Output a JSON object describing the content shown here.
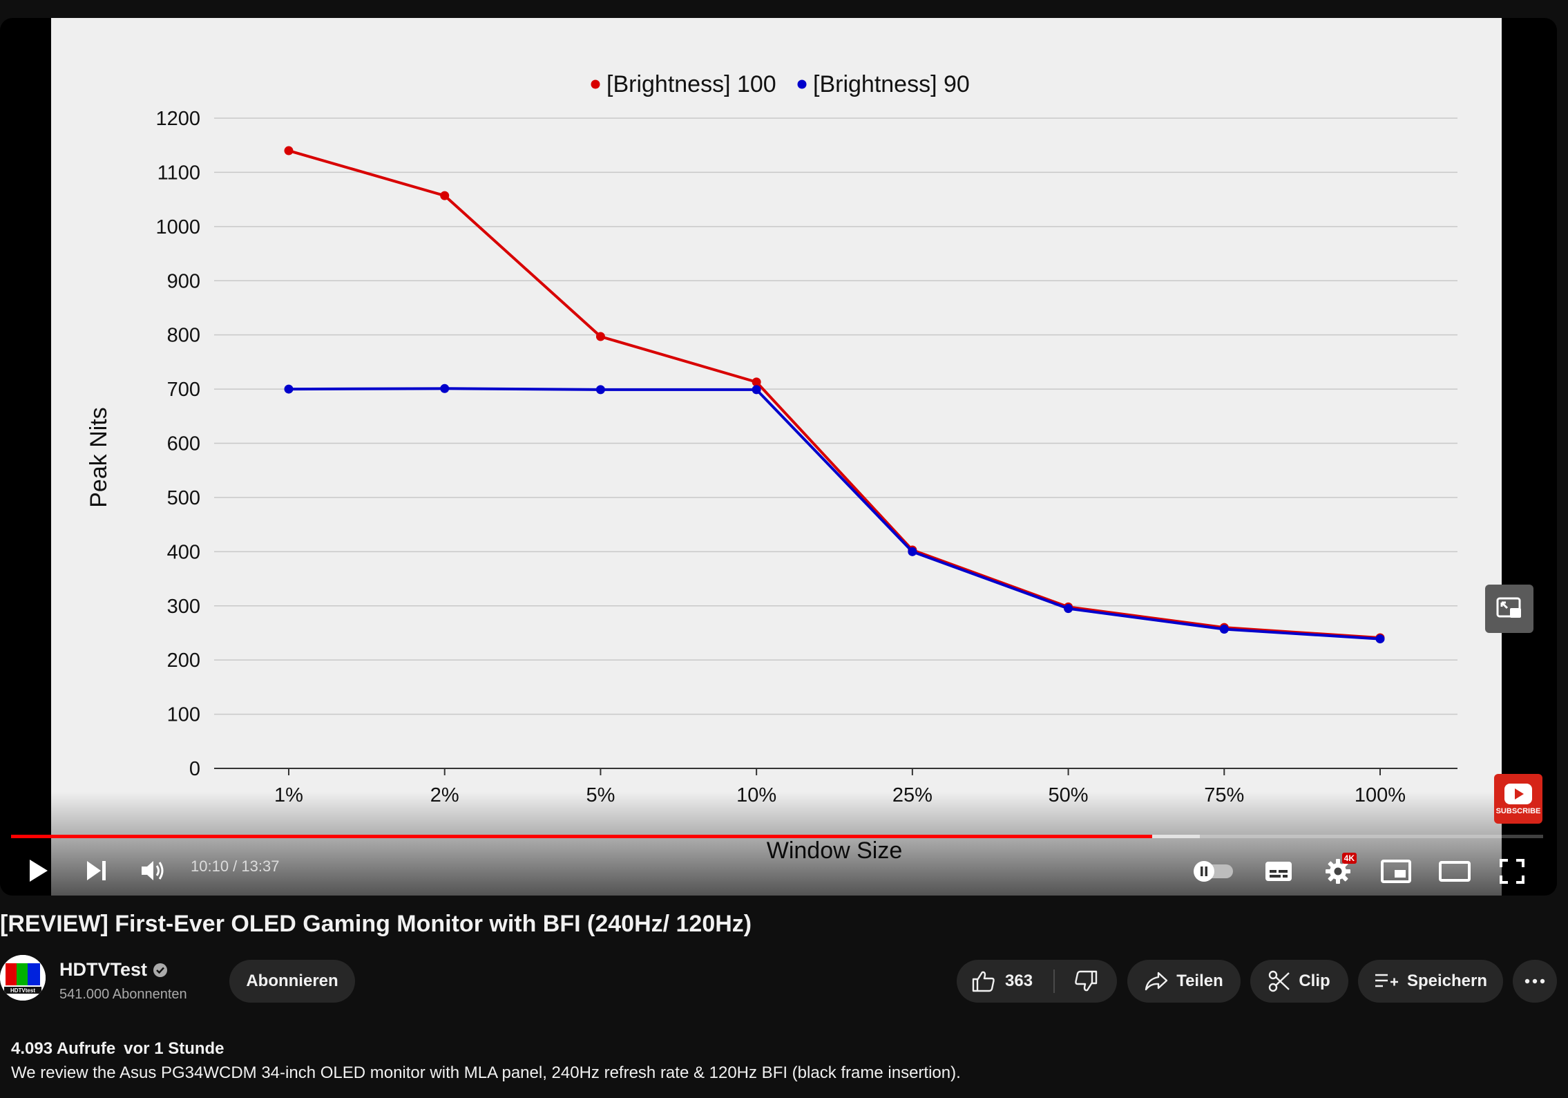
{
  "player": {
    "current_time": "10:10",
    "duration": "13:37",
    "time_display": "10:10 / 13:37",
    "progress_fraction": 0.745,
    "buffer_fraction": 0.776,
    "quality_badge": "4K",
    "subscribe_watermark": "SUBSCRIBE",
    "icons": {
      "play": "play-icon",
      "next": "next-icon",
      "volume": "volume-icon",
      "autoplay": "autoplay-toggle-icon",
      "subtitles": "subtitles-icon",
      "settings": "settings-gear-icon",
      "miniplayer": "miniplayer-icon",
      "theater": "theater-mode-icon",
      "fullscreen": "fullscreen-icon"
    }
  },
  "chart_data": {
    "type": "line",
    "title": "",
    "xlabel": "Window Size",
    "ylabel": "Peak Nits",
    "categories": [
      "1%",
      "2%",
      "5%",
      "10%",
      "25%",
      "50%",
      "75%",
      "100%"
    ],
    "ylim": [
      0,
      1200
    ],
    "yticks": [
      0,
      100,
      200,
      300,
      400,
      500,
      600,
      700,
      800,
      900,
      1000,
      1100,
      1200
    ],
    "grid": true,
    "legend_position": "top",
    "series": [
      {
        "name": "[Brightness] 100",
        "color": "#d80000",
        "values": [
          1140,
          1057,
          797,
          713,
          403,
          298,
          260,
          241
        ]
      },
      {
        "name": "[Brightness] 90",
        "color": "#0000cc",
        "values": [
          700,
          701,
          699,
          699,
          400,
          295,
          257,
          239
        ]
      }
    ]
  },
  "video": {
    "title": "[REVIEW] First-Ever OLED Gaming Monitor with BFI (240Hz/ 120Hz)",
    "channel_name": "HDTVTest",
    "subscriber_count": "541.000 Abonnenten",
    "avatar_text": "HDTVtest"
  },
  "actions": {
    "subscribe_label": "Abonnieren",
    "like_count": "363",
    "share_label": "Teilen",
    "clip_label": "Clip",
    "save_label": "Speichern"
  },
  "description": {
    "views": "4.093 Aufrufe",
    "age": "vor 1 Stunde",
    "text": "We review the Asus PG34WCDM 34-inch OLED monitor with MLA panel, 240Hz refresh rate & 120Hz BFI (black frame insertion)."
  },
  "colors": {
    "background": "#0f0f0f",
    "pill": "#272727",
    "progress_played": "#ff0000",
    "chart_background": "#efefef"
  }
}
